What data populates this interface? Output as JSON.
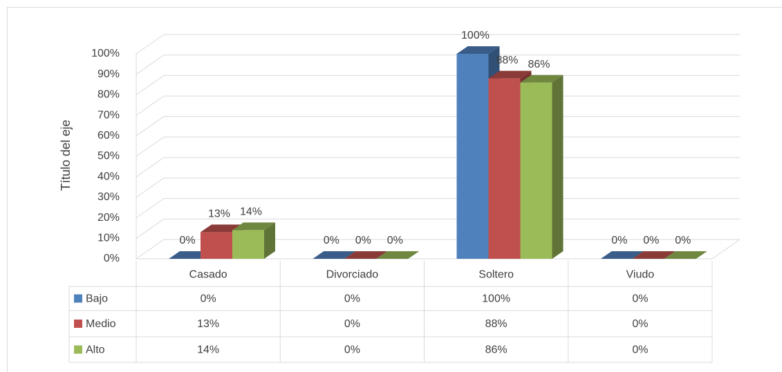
{
  "chart_data": {
    "type": "bar3d",
    "y_label": "Título del eje",
    "categories": [
      "Casado",
      "Divorciado",
      "Soltero",
      "Viudo"
    ],
    "series": [
      {
        "name": "Bajo",
        "color": "#4f81bd",
        "values": [
          0,
          0,
          100,
          0
        ],
        "value_labels": [
          "0%",
          "0%",
          "100%",
          "0%"
        ]
      },
      {
        "name": "Medio",
        "color": "#c0504d",
        "values": [
          13,
          0,
          88,
          0
        ],
        "value_labels": [
          "13%",
          "0%",
          "88%",
          "0%"
        ]
      },
      {
        "name": "Alto",
        "color": "#9bbb59",
        "values": [
          14,
          0,
          86,
          0
        ],
        "value_labels": [
          "14%",
          "0%",
          "86%",
          "0%"
        ]
      }
    ],
    "ylim": [
      0,
      100
    ],
    "yticks": [
      {
        "value": 0,
        "label": "0%"
      },
      {
        "value": 10,
        "label": "10%"
      },
      {
        "value": 20,
        "label": "20%"
      },
      {
        "value": 30,
        "label": "30%"
      },
      {
        "value": 40,
        "label": "40%"
      },
      {
        "value": 50,
        "label": "50%"
      },
      {
        "value": 60,
        "label": "60%"
      },
      {
        "value": 70,
        "label": "70%"
      },
      {
        "value": 80,
        "label": "80%"
      },
      {
        "value": 90,
        "label": "90%"
      },
      {
        "value": 100,
        "label": "100%"
      }
    ],
    "grid": true,
    "data_table": true
  }
}
